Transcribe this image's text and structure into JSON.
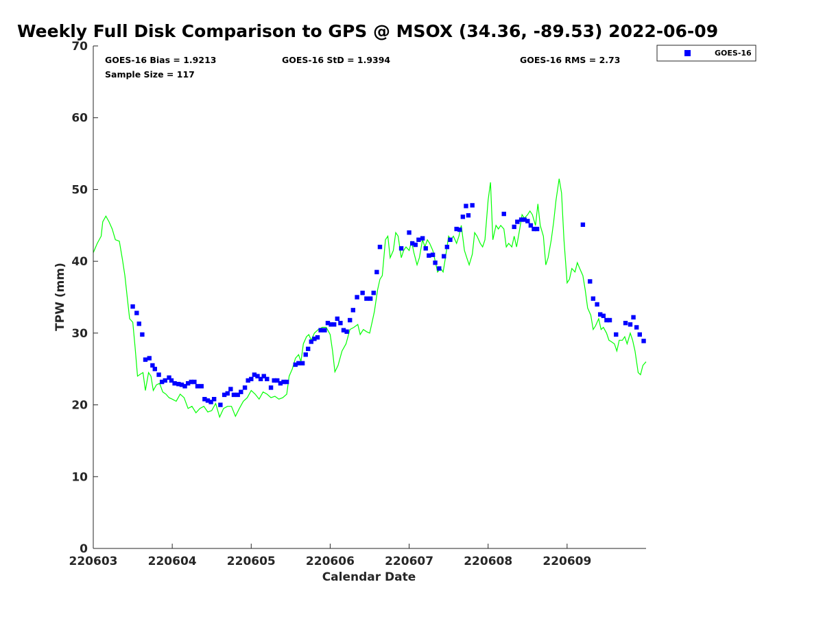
{
  "chart_data": {
    "type": "line+scatter",
    "title": "Weekly Full Disk Comparison to GPS @ MSOX (34.36, -89.53) 2022-06-09",
    "xlabel": "Calendar Date",
    "ylabel": "TPW (mm)",
    "xlim": [
      0,
      7
    ],
    "ylim": [
      0,
      70
    ],
    "yticks": [
      0,
      10,
      20,
      30,
      40,
      50,
      60,
      70
    ],
    "xticks": [
      0,
      1,
      2,
      3,
      4,
      5,
      6
    ],
    "xtick_labels": [
      "220603",
      "220604",
      "220605",
      "220606",
      "220607",
      "220608",
      "220609"
    ],
    "stats": {
      "bias": "GOES-16 Bias = 1.9213",
      "std": "GOES-16 StD = 1.9394",
      "rms": "GOES-16 RMS = 2.73",
      "sample": "Sample Size = 117"
    },
    "legend": {
      "position": "top-right",
      "entries": [
        {
          "name": "GOES-16",
          "color": "#0000ff",
          "marker": "square"
        }
      ]
    },
    "gps_line": {
      "name": "GPS",
      "color": "#00ff00",
      "points": [
        [
          0.0,
          41.2
        ],
        [
          0.05,
          42.5
        ],
        [
          0.1,
          43.5
        ],
        [
          0.12,
          45.5
        ],
        [
          0.16,
          46.3
        ],
        [
          0.2,
          45.5
        ],
        [
          0.24,
          44.5
        ],
        [
          0.28,
          43.0
        ],
        [
          0.33,
          42.8
        ],
        [
          0.37,
          40.2
        ],
        [
          0.4,
          38.0
        ],
        [
          0.43,
          35.0
        ],
        [
          0.46,
          32.0
        ],
        [
          0.5,
          31.5
        ],
        [
          0.53,
          28.0
        ],
        [
          0.56,
          24.0
        ],
        [
          0.6,
          24.3
        ],
        [
          0.63,
          24.5
        ],
        [
          0.66,
          22.0
        ],
        [
          0.7,
          24.5
        ],
        [
          0.73,
          24.0
        ],
        [
          0.76,
          22.0
        ],
        [
          0.8,
          22.8
        ],
        [
          0.84,
          23.0
        ],
        [
          0.88,
          21.8
        ],
        [
          0.92,
          21.5
        ],
        [
          0.96,
          21.0
        ],
        [
          1.0,
          20.8
        ],
        [
          1.05,
          20.5
        ],
        [
          1.1,
          21.5
        ],
        [
          1.15,
          21.0
        ],
        [
          1.2,
          19.5
        ],
        [
          1.25,
          19.8
        ],
        [
          1.3,
          18.9
        ],
        [
          1.35,
          19.5
        ],
        [
          1.4,
          19.8
        ],
        [
          1.45,
          19.0
        ],
        [
          1.5,
          19.2
        ],
        [
          1.55,
          20.2
        ],
        [
          1.6,
          18.3
        ],
        [
          1.65,
          19.5
        ],
        [
          1.7,
          19.8
        ],
        [
          1.75,
          19.8
        ],
        [
          1.8,
          18.4
        ],
        [
          1.85,
          19.5
        ],
        [
          1.9,
          20.5
        ],
        [
          1.95,
          21.0
        ],
        [
          2.0,
          22.0
        ],
        [
          2.05,
          21.5
        ],
        [
          2.1,
          20.8
        ],
        [
          2.15,
          21.8
        ],
        [
          2.2,
          21.5
        ],
        [
          2.25,
          21.0
        ],
        [
          2.3,
          21.2
        ],
        [
          2.35,
          20.8
        ],
        [
          2.4,
          21.0
        ],
        [
          2.45,
          21.5
        ],
        [
          2.48,
          24.0
        ],
        [
          2.52,
          25.0
        ],
        [
          2.56,
          26.5
        ],
        [
          2.6,
          27.0
        ],
        [
          2.63,
          26.0
        ],
        [
          2.66,
          28.5
        ],
        [
          2.7,
          29.5
        ],
        [
          2.73,
          29.8
        ],
        [
          2.76,
          29.0
        ],
        [
          2.8,
          30.0
        ],
        [
          2.85,
          30.5
        ],
        [
          2.9,
          30.8
        ],
        [
          2.95,
          30.8
        ],
        [
          3.0,
          29.8
        ],
        [
          3.03,
          27.5
        ],
        [
          3.06,
          24.6
        ],
        [
          3.1,
          25.5
        ],
        [
          3.15,
          27.5
        ],
        [
          3.2,
          28.5
        ],
        [
          3.25,
          30.5
        ],
        [
          3.3,
          30.8
        ],
        [
          3.35,
          31.2
        ],
        [
          3.38,
          29.8
        ],
        [
          3.42,
          30.5
        ],
        [
          3.46,
          30.2
        ],
        [
          3.5,
          30.0
        ],
        [
          3.53,
          31.5
        ],
        [
          3.56,
          33.0
        ],
        [
          3.6,
          36.0
        ],
        [
          3.63,
          37.5
        ],
        [
          3.66,
          38.0
        ],
        [
          3.7,
          43.0
        ],
        [
          3.73,
          43.5
        ],
        [
          3.76,
          40.5
        ],
        [
          3.8,
          41.5
        ],
        [
          3.83,
          44.0
        ],
        [
          3.86,
          43.5
        ],
        [
          3.9,
          40.5
        ],
        [
          3.93,
          41.5
        ],
        [
          3.96,
          42.0
        ],
        [
          4.0,
          41.5
        ],
        [
          4.03,
          42.8
        ],
        [
          4.06,
          41.2
        ],
        [
          4.1,
          39.5
        ],
        [
          4.13,
          40.5
        ],
        [
          4.17,
          43.0
        ],
        [
          4.2,
          42.0
        ],
        [
          4.23,
          43.0
        ],
        [
          4.26,
          42.5
        ],
        [
          4.3,
          41.5
        ],
        [
          4.33,
          40.0
        ],
        [
          4.36,
          38.5
        ],
        [
          4.4,
          39.0
        ],
        [
          4.43,
          38.5
        ],
        [
          4.46,
          40.5
        ],
        [
          4.5,
          43.5
        ],
        [
          4.53,
          43.0
        ],
        [
          4.56,
          43.5
        ],
        [
          4.6,
          42.5
        ],
        [
          4.63,
          43.5
        ],
        [
          4.66,
          45.0
        ],
        [
          4.7,
          41.5
        ],
        [
          4.73,
          40.5
        ],
        [
          4.76,
          39.5
        ],
        [
          4.8,
          41.0
        ],
        [
          4.83,
          44.0
        ],
        [
          4.86,
          43.5
        ],
        [
          4.9,
          42.5
        ],
        [
          4.93,
          42.0
        ],
        [
          4.96,
          43.0
        ],
        [
          5.0,
          48.5
        ],
        [
          5.03,
          51.0
        ],
        [
          5.06,
          43.0
        ],
        [
          5.1,
          45.0
        ],
        [
          5.13,
          44.5
        ],
        [
          5.16,
          45.0
        ],
        [
          5.2,
          44.5
        ],
        [
          5.23,
          42.0
        ],
        [
          5.26,
          42.5
        ],
        [
          5.3,
          42.0
        ],
        [
          5.33,
          43.5
        ],
        [
          5.36,
          42.0
        ],
        [
          5.4,
          44.5
        ],
        [
          5.43,
          46.5
        ],
        [
          5.46,
          46.0
        ],
        [
          5.5,
          46.5
        ],
        [
          5.53,
          47.0
        ],
        [
          5.56,
          46.5
        ],
        [
          5.6,
          45.0
        ],
        [
          5.63,
          48.0
        ],
        [
          5.66,
          45.0
        ],
        [
          5.7,
          43.5
        ],
        [
          5.73,
          39.5
        ],
        [
          5.76,
          40.5
        ],
        [
          5.8,
          43.0
        ],
        [
          5.83,
          45.5
        ],
        [
          5.86,
          48.5
        ],
        [
          5.9,
          51.5
        ],
        [
          5.93,
          49.5
        ],
        [
          5.96,
          43.0
        ],
        [
          6.0,
          37.0
        ],
        [
          6.03,
          37.5
        ],
        [
          6.06,
          39.0
        ],
        [
          6.1,
          38.5
        ],
        [
          6.13,
          39.8
        ],
        [
          6.16,
          39.0
        ],
        [
          6.2,
          38.0
        ],
        [
          6.23,
          36.0
        ],
        [
          6.26,
          33.5
        ],
        [
          6.3,
          32.5
        ],
        [
          6.33,
          30.5
        ],
        [
          6.36,
          31.0
        ],
        [
          6.4,
          32.0
        ],
        [
          6.43,
          30.5
        ],
        [
          6.46,
          30.8
        ],
        [
          6.5,
          30.0
        ],
        [
          6.53,
          29.0
        ],
        [
          6.56,
          28.8
        ],
        [
          6.6,
          28.5
        ],
        [
          6.63,
          27.5
        ],
        [
          6.66,
          29.0
        ],
        [
          6.7,
          29.0
        ],
        [
          6.73,
          29.5
        ],
        [
          6.76,
          28.5
        ],
        [
          6.8,
          30.0
        ],
        [
          6.83,
          29.0
        ],
        [
          6.86,
          27.5
        ],
        [
          6.9,
          24.5
        ],
        [
          6.93,
          24.2
        ],
        [
          6.96,
          25.5
        ],
        [
          7.0,
          26.0
        ]
      ]
    },
    "goes16_points": [
      [
        0.5,
        33.7
      ],
      [
        0.55,
        32.8
      ],
      [
        0.58,
        31.3
      ],
      [
        0.62,
        29.8
      ],
      [
        0.66,
        26.3
      ],
      [
        0.71,
        26.5
      ],
      [
        0.75,
        25.5
      ],
      [
        0.78,
        25.0
      ],
      [
        0.83,
        24.2
      ],
      [
        0.87,
        23.2
      ],
      [
        0.91,
        23.4
      ],
      [
        0.96,
        23.8
      ],
      [
        0.99,
        23.4
      ],
      [
        1.03,
        23.0
      ],
      [
        1.08,
        22.9
      ],
      [
        1.12,
        22.8
      ],
      [
        1.16,
        22.6
      ],
      [
        1.2,
        23.0
      ],
      [
        1.24,
        23.2
      ],
      [
        1.28,
        23.2
      ],
      [
        1.32,
        22.6
      ],
      [
        1.37,
        22.6
      ],
      [
        1.41,
        20.8
      ],
      [
        1.45,
        20.6
      ],
      [
        1.49,
        20.4
      ],
      [
        1.53,
        20.8
      ],
      [
        1.61,
        20.0
      ],
      [
        1.66,
        21.4
      ],
      [
        1.7,
        21.6
      ],
      [
        1.74,
        22.2
      ],
      [
        1.78,
        21.4
      ],
      [
        1.83,
        21.4
      ],
      [
        1.87,
        21.8
      ],
      [
        1.92,
        22.4
      ],
      [
        1.96,
        23.4
      ],
      [
        2.0,
        23.6
      ],
      [
        2.04,
        24.2
      ],
      [
        2.08,
        24.0
      ],
      [
        2.12,
        23.6
      ],
      [
        2.16,
        24.0
      ],
      [
        2.2,
        23.6
      ],
      [
        2.25,
        22.4
      ],
      [
        2.29,
        23.4
      ],
      [
        2.33,
        23.4
      ],
      [
        2.37,
        23.0
      ],
      [
        2.41,
        23.2
      ],
      [
        2.45,
        23.2
      ],
      [
        2.56,
        25.6
      ],
      [
        2.6,
        25.8
      ],
      [
        2.65,
        25.8
      ],
      [
        2.69,
        27.0
      ],
      [
        2.72,
        27.8
      ],
      [
        2.76,
        28.8
      ],
      [
        2.8,
        29.2
      ],
      [
        2.84,
        29.4
      ],
      [
        2.88,
        30.4
      ],
      [
        2.93,
        30.4
      ],
      [
        2.97,
        31.4
      ],
      [
        3.01,
        31.2
      ],
      [
        3.05,
        31.2
      ],
      [
        3.09,
        32.0
      ],
      [
        3.13,
        31.4
      ],
      [
        3.17,
        30.4
      ],
      [
        3.21,
        30.2
      ],
      [
        3.25,
        31.8
      ],
      [
        3.29,
        33.2
      ],
      [
        3.34,
        35.0
      ],
      [
        3.41,
        35.6
      ],
      [
        3.46,
        34.8
      ],
      [
        3.51,
        34.8
      ],
      [
        3.55,
        35.6
      ],
      [
        3.59,
        38.5
      ],
      [
        3.63,
        42.0
      ],
      [
        3.9,
        41.8
      ],
      [
        4.0,
        44.0
      ],
      [
        4.04,
        42.5
      ],
      [
        4.08,
        42.3
      ],
      [
        4.12,
        43.0
      ],
      [
        4.17,
        43.2
      ],
      [
        4.21,
        41.8
      ],
      [
        4.25,
        40.8
      ],
      [
        4.3,
        40.9
      ],
      [
        4.33,
        39.8
      ],
      [
        4.38,
        39.0
      ],
      [
        4.44,
        40.7
      ],
      [
        4.48,
        42.0
      ],
      [
        4.52,
        43.0
      ],
      [
        4.6,
        44.5
      ],
      [
        4.64,
        44.4
      ],
      [
        4.68,
        46.2
      ],
      [
        4.72,
        47.7
      ],
      [
        4.75,
        46.4
      ],
      [
        4.8,
        47.8
      ],
      [
        5.2,
        46.6
      ],
      [
        5.33,
        44.8
      ],
      [
        5.37,
        45.5
      ],
      [
        5.42,
        45.8
      ],
      [
        5.46,
        45.8
      ],
      [
        5.5,
        45.6
      ],
      [
        5.54,
        45.0
      ],
      [
        5.58,
        44.5
      ],
      [
        5.62,
        44.5
      ],
      [
        6.2,
        45.1
      ],
      [
        6.29,
        37.2
      ],
      [
        6.33,
        34.8
      ],
      [
        6.38,
        34.0
      ],
      [
        6.42,
        32.6
      ],
      [
        6.46,
        32.4
      ],
      [
        6.5,
        31.8
      ],
      [
        6.54,
        31.8
      ],
      [
        6.62,
        29.8
      ],
      [
        6.74,
        31.4
      ],
      [
        6.8,
        31.2
      ],
      [
        6.84,
        32.2
      ],
      [
        6.88,
        30.8
      ],
      [
        6.92,
        29.8
      ],
      [
        6.97,
        28.9
      ]
    ]
  }
}
